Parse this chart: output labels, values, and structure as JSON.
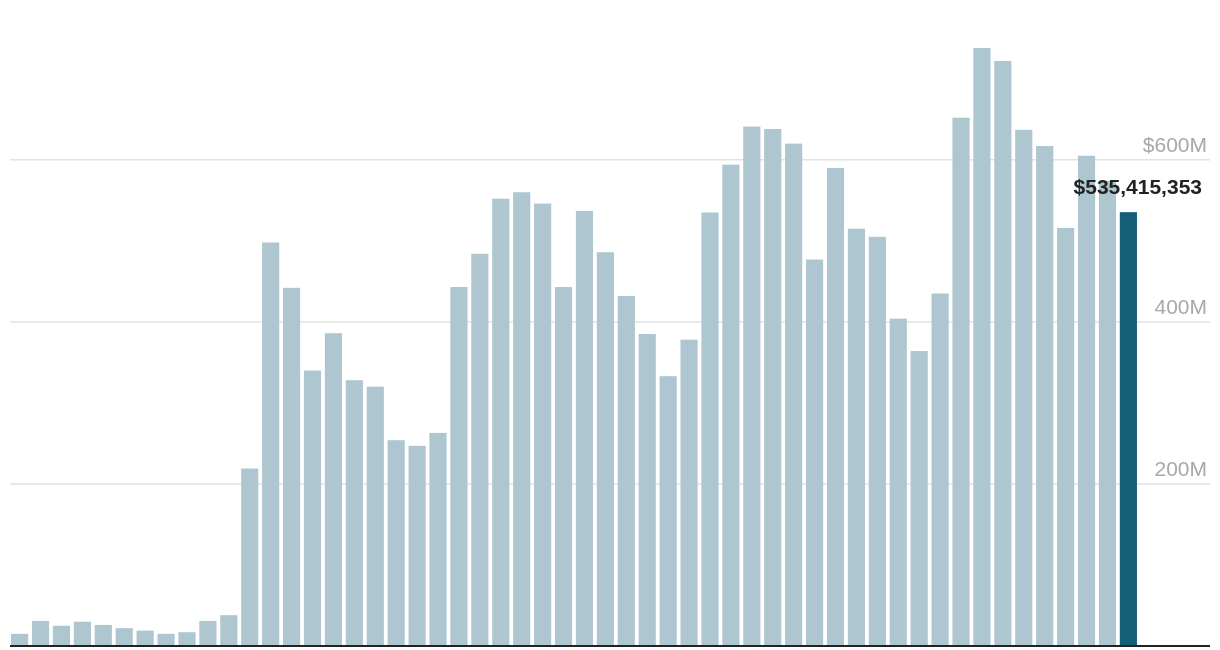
{
  "chart_data": {
    "type": "bar",
    "categories": [
      null,
      null,
      null,
      null,
      null,
      null,
      null,
      null,
      null,
      null,
      null,
      null,
      null,
      null,
      null,
      null,
      null,
      null,
      null,
      null,
      null,
      null,
      null,
      null,
      null,
      null,
      null,
      null,
      null,
      null,
      null,
      null,
      null,
      null,
      null,
      null,
      null,
      null,
      null,
      null,
      null,
      null,
      null,
      null,
      null,
      null,
      null,
      null,
      null,
      null,
      null,
      null,
      null,
      null
    ],
    "values": [
      15,
      31,
      25,
      30,
      26,
      22,
      19,
      15,
      17,
      31,
      38,
      219,
      498,
      442,
      340,
      386,
      328,
      320,
      254,
      247,
      263,
      443,
      484,
      552,
      560,
      546,
      443,
      537,
      486,
      432,
      385,
      333,
      378,
      535,
      594,
      641,
      638,
      620,
      477,
      590,
      515,
      505,
      404,
      364,
      435,
      652,
      738,
      722,
      637,
      617,
      516,
      605,
      574,
      535.415353
    ],
    "colors": [
      "#adc6cf",
      "#adc6cf",
      "#adc6cf",
      "#adc6cf",
      "#adc6cf",
      "#adc6cf",
      "#adc6cf",
      "#adc6cf",
      "#adc6cf",
      "#adc6cf",
      "#adc6cf",
      "#adc6cf",
      "#adc6cf",
      "#adc6cf",
      "#adc6cf",
      "#adc6cf",
      "#adc6cf",
      "#adc6cf",
      "#adc6cf",
      "#adc6cf",
      "#adc6cf",
      "#adc6cf",
      "#adc6cf",
      "#adc6cf",
      "#adc6cf",
      "#adc6cf",
      "#adc6cf",
      "#adc6cf",
      "#adc6cf",
      "#adc6cf",
      "#adc6cf",
      "#adc6cf",
      "#adc6cf",
      "#adc6cf",
      "#adc6cf",
      "#adc6cf",
      "#adc6cf",
      "#adc6cf",
      "#adc6cf",
      "#adc6cf",
      "#adc6cf",
      "#adc6cf",
      "#adc6cf",
      "#adc6cf",
      "#adc6cf",
      "#adc6cf",
      "#adc6cf",
      "#adc6cf",
      "#adc6cf",
      "#adc6cf",
      "#adc6cf",
      "#adc6cf",
      "#adc6cf",
      "#155e78"
    ],
    "yticks": [
      {
        "value": 200,
        "label": "200M"
      },
      {
        "value": 400,
        "label": "400M"
      },
      {
        "value": 600,
        "label": "$600M"
      }
    ],
    "ylim": [
      0,
      738
    ],
    "grid": "y",
    "annotations": [
      {
        "text": "$535,415,353",
        "y": 535.415353
      }
    ]
  }
}
